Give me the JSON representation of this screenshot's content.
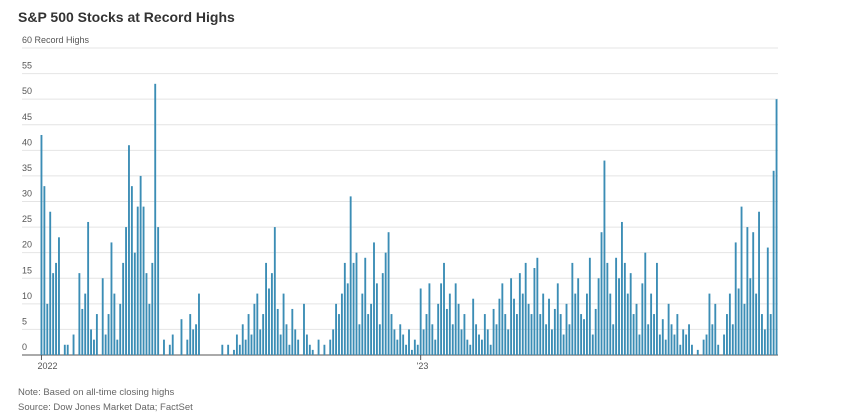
{
  "chart_data": {
    "type": "bar",
    "title": "S&P 500 Stocks at Record Highs",
    "note": "Note: Based on all-time closing highs",
    "source": "Source: Dow Jones Market Data; FactSet",
    "color": "#3b8db5",
    "grid": true,
    "ylim": [
      0,
      60
    ],
    "yticks": [
      0,
      5,
      10,
      15,
      20,
      25,
      30,
      35,
      40,
      45,
      50,
      55,
      {
        "value": 60,
        "label": "60 Record Highs"
      }
    ],
    "categories": [
      "2022",
      null,
      null,
      null,
      null,
      null,
      null,
      null,
      null,
      null,
      null,
      null,
      null,
      null,
      null,
      null,
      null,
      null,
      null,
      null,
      null,
      null,
      null,
      null,
      null,
      null,
      null,
      null,
      null,
      null,
      null,
      null,
      null,
      null,
      null,
      null,
      null,
      null,
      null,
      null,
      null,
      null,
      null,
      null,
      null,
      null,
      null,
      null,
      null,
      null,
      null,
      null,
      null,
      null,
      null,
      null,
      null,
      null,
      null,
      null,
      null,
      null,
      null,
      null,
      null,
      null,
      null,
      null,
      null,
      null,
      null,
      null,
      null,
      null,
      null,
      null,
      null,
      null,
      null,
      null,
      null,
      null,
      null,
      null,
      null,
      null,
      null,
      null,
      null,
      null,
      null,
      null,
      null,
      null,
      null,
      null,
      null,
      null,
      null,
      null,
      null,
      null,
      null,
      null,
      null,
      null,
      null,
      null,
      null,
      null,
      null,
      null,
      null,
      null,
      null,
      null,
      null,
      null,
      null,
      null,
      null,
      null,
      null,
      null,
      null,
      null,
      null,
      null,
      null,
      null,
      "'23",
      null,
      null,
      null,
      null,
      null,
      null,
      null,
      null,
      null,
      null,
      null,
      null,
      null,
      null,
      null,
      null,
      null,
      null,
      null,
      null,
      null,
      null,
      null,
      null,
      null,
      null,
      null,
      null,
      null,
      null,
      null,
      null,
      null,
      null,
      null,
      null,
      null,
      null,
      null,
      null,
      null,
      null,
      null,
      null,
      null,
      null,
      null,
      null,
      null,
      null,
      null,
      null,
      null,
      null,
      null,
      null,
      null,
      null,
      null,
      null,
      null,
      null,
      null,
      null,
      null,
      null,
      null,
      null,
      null,
      null,
      null,
      null,
      null,
      null,
      null,
      null,
      null,
      null,
      null,
      null,
      null,
      null,
      null,
      null,
      null,
      null,
      null,
      null,
      null,
      null,
      null,
      null,
      null,
      null,
      null,
      null,
      null,
      null,
      null,
      null,
      null,
      null,
      null,
      null,
      null,
      null,
      null,
      null,
      null,
      null,
      null,
      null,
      null,
      null,
      null,
      null,
      null,
      null,
      null,
      null,
      null,
      null
    ],
    "values": [
      43,
      33,
      10,
      28,
      16,
      18,
      23,
      0,
      2,
      2,
      0,
      4,
      0,
      16,
      9,
      12,
      26,
      5,
      3,
      8,
      0,
      15,
      4,
      8,
      22,
      12,
      3,
      10,
      18,
      25,
      41,
      33,
      20,
      29,
      35,
      29,
      16,
      10,
      18,
      53,
      25,
      0,
      3,
      0,
      2,
      4,
      0,
      0,
      7,
      0,
      3,
      8,
      5,
      6,
      12,
      0,
      0,
      0,
      0,
      0,
      0,
      0,
      2,
      0,
      2,
      0,
      1,
      4,
      2,
      6,
      3,
      8,
      4,
      10,
      12,
      5,
      8,
      18,
      13,
      16,
      25,
      9,
      4,
      12,
      6,
      2,
      9,
      5,
      3,
      0,
      10,
      4,
      2,
      1,
      0,
      3,
      0,
      2,
      0,
      3,
      5,
      10,
      8,
      12,
      18,
      14,
      31,
      18,
      20,
      6,
      12,
      19,
      8,
      10,
      22,
      14,
      6,
      16,
      20,
      24,
      8,
      5,
      3,
      6,
      4,
      2,
      5,
      1,
      3,
      2,
      13,
      5,
      8,
      14,
      6,
      3,
      10,
      14,
      18,
      9,
      12,
      6,
      14,
      10,
      5,
      8,
      3,
      2,
      11,
      6,
      4,
      3,
      8,
      5,
      2,
      9,
      6,
      11,
      14,
      8,
      5,
      15,
      11,
      8,
      16,
      12,
      18,
      10,
      8,
      17,
      19,
      8,
      12,
      6,
      11,
      5,
      9,
      14,
      8,
      4,
      10,
      6,
      18,
      12,
      15,
      8,
      7,
      12,
      19,
      4,
      9,
      15,
      24,
      38,
      18,
      12,
      6,
      19,
      15,
      26,
      18,
      12,
      16,
      8,
      10,
      4,
      14,
      20,
      6,
      12,
      8,
      18,
      4,
      7,
      3,
      10,
      6,
      4,
      8,
      2,
      5,
      4,
      6,
      2,
      0,
      1,
      0,
      3,
      4,
      12,
      6,
      10,
      2,
      0,
      4,
      8,
      12,
      6,
      22,
      13,
      29,
      10,
      25,
      15,
      24,
      12,
      28,
      8,
      5,
      21,
      8,
      36,
      50
    ]
  }
}
